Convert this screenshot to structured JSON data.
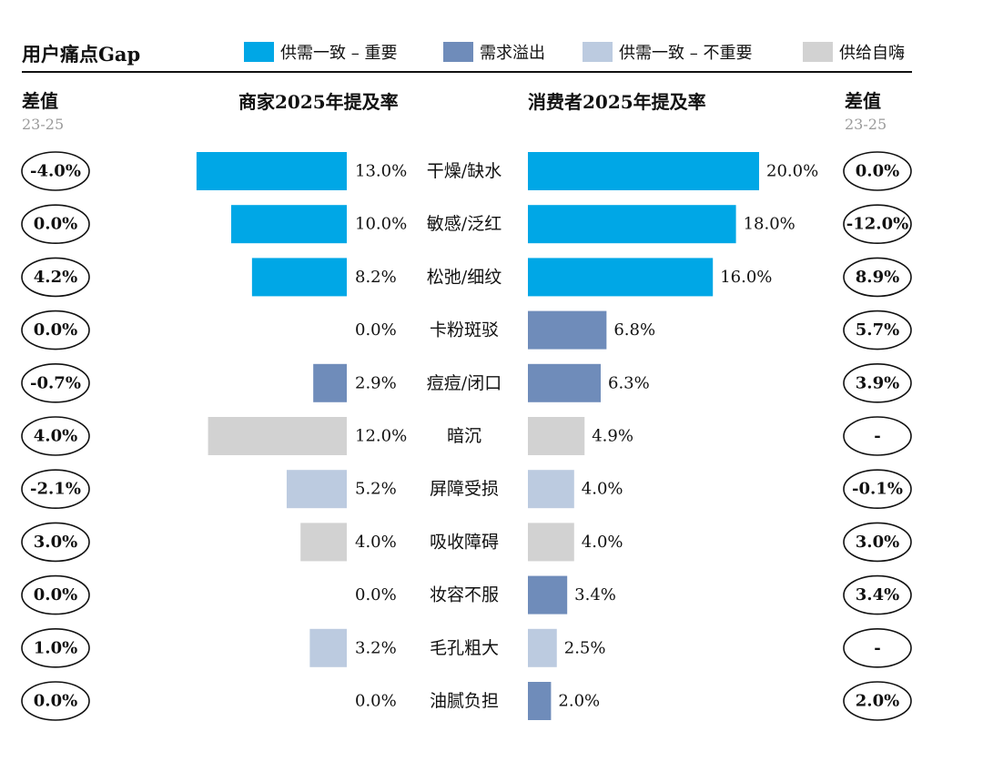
{
  "header": {
    "title": "用户痛点Gap",
    "legend": [
      {
        "label": "供需一致 – 重要",
        "color": "#00a7e6"
      },
      {
        "label": "需求溢出",
        "color": "#6f8cba"
      },
      {
        "label": "供需一致 – 不重要",
        "color": "#bccbe0"
      },
      {
        "label": "供给自嗨",
        "color": "#d2d2d2"
      }
    ]
  },
  "columns": {
    "left_diff_title": "差值",
    "left_diff_sub": "23-25",
    "merchant_title": "商家2025年提及率",
    "consumer_title": "消费者2025年提及率",
    "right_diff_title": "差值",
    "right_diff_sub": "23-25"
  },
  "chart_data": {
    "type": "bar",
    "orientation": "horizontal-butterfly",
    "categories": [
      "干燥/缺水",
      "敏感/泛红",
      "松弛/细纹",
      "卡粉斑驳",
      "痘痘/闭口",
      "暗沉",
      "屏障受损",
      "吸收障碍",
      "妆容不服",
      "毛孔粗大",
      "油腻负担"
    ],
    "series": [
      {
        "side": "left",
        "values": [
          13.0,
          10.0,
          8.2,
          0.0,
          2.9,
          12.0,
          5.2,
          4.0,
          0.0,
          3.2,
          0.0
        ]
      },
      {
        "side": "right",
        "values": [
          20.0,
          18.0,
          16.0,
          6.8,
          6.3,
          4.9,
          4.0,
          4.0,
          3.4,
          2.5,
          2.0
        ]
      }
    ],
    "value_labels": {
      "left": [
        "13.0%",
        "10.0%",
        "8.2%",
        "0.0%",
        "2.9%",
        "12.0%",
        "5.2%",
        "4.0%",
        "0.0%",
        "3.2%",
        "0.0%"
      ],
      "right": [
        "20.0%",
        "18.0%",
        "16.0%",
        "6.8%",
        "6.3%",
        "4.9%",
        "4.0%",
        "4.0%",
        "3.4%",
        "2.5%",
        "2.0%"
      ]
    },
    "row_colors": [
      "#00a7e6",
      "#00a7e6",
      "#00a7e6",
      "#6f8cba",
      "#6f8cba",
      "#d2d2d2",
      "#bccbe0",
      "#d2d2d2",
      "#6f8cba",
      "#bccbe0",
      "#6f8cba"
    ],
    "left_diff": [
      "-4.0%",
      "0.0%",
      "4.2%",
      "0.0%",
      "-0.7%",
      "4.0%",
      "-2.1%",
      "3.0%",
      "0.0%",
      "1.0%",
      "0.0%"
    ],
    "right_diff": [
      "0.0%",
      "-12.0%",
      "8.9%",
      "5.7%",
      "3.9%",
      "-",
      "-0.1%",
      "3.0%",
      "3.4%",
      "-",
      "2.0%"
    ],
    "xlim": [
      0,
      20
    ],
    "grid": false,
    "legend_position": "top"
  }
}
